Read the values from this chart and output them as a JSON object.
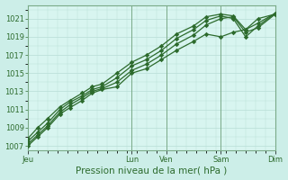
{
  "background_color": "#cceee8",
  "plot_bg": "#d8f5f0",
  "grid_color": "#b8ddd6",
  "line_color": "#2d6b2d",
  "marker_color": "#2d6b2d",
  "xlabel": "Pression niveau de la mer( hPa )",
  "ylim": [
    1006.5,
    1022.5
  ],
  "yticks": [
    1007,
    1009,
    1011,
    1013,
    1015,
    1017,
    1019,
    1021
  ],
  "day_labels": [
    "Jeu",
    "Lun",
    "Ven",
    "Sam",
    "Dim"
  ],
  "day_positions": [
    0,
    0.42,
    0.56,
    0.78,
    1.0
  ],
  "series": [
    {
      "x": [
        0.0,
        0.04,
        0.08,
        0.13,
        0.17,
        0.22,
        0.26,
        0.3,
        0.36,
        0.42,
        0.48,
        0.54,
        0.6,
        0.67,
        0.72,
        0.78,
        0.83,
        0.88,
        0.93,
        1.0
      ],
      "y": [
        1007.0,
        1008.0,
        1009.0,
        1010.5,
        1011.2,
        1012.0,
        1012.8,
        1013.2,
        1013.5,
        1015.0,
        1015.5,
        1016.5,
        1017.5,
        1018.5,
        1019.3,
        1019.0,
        1019.5,
        1019.8,
        1021.0,
        1021.5
      ]
    },
    {
      "x": [
        0.0,
        0.04,
        0.08,
        0.13,
        0.17,
        0.22,
        0.26,
        0.3,
        0.36,
        0.42,
        0.48,
        0.54,
        0.6,
        0.67,
        0.72,
        0.78,
        0.83,
        0.88,
        0.93,
        1.0
      ],
      "y": [
        1007.2,
        1008.2,
        1009.2,
        1010.7,
        1011.5,
        1012.3,
        1013.0,
        1013.3,
        1014.0,
        1015.3,
        1016.0,
        1017.0,
        1018.2,
        1019.2,
        1020.3,
        1021.0,
        1021.2,
        1019.5,
        1020.0,
        1021.5
      ]
    },
    {
      "x": [
        0.0,
        0.04,
        0.08,
        0.13,
        0.17,
        0.22,
        0.26,
        0.3,
        0.36,
        0.42,
        0.48,
        0.54,
        0.6,
        0.67,
        0.72,
        0.78,
        0.83,
        0.88,
        0.93,
        1.0
      ],
      "y": [
        1007.5,
        1008.5,
        1009.5,
        1011.0,
        1011.8,
        1012.5,
        1013.2,
        1013.5,
        1014.5,
        1015.8,
        1016.5,
        1017.5,
        1018.8,
        1019.8,
        1020.8,
        1021.3,
        1021.0,
        1019.0,
        1020.2,
        1021.6
      ]
    },
    {
      "x": [
        0.0,
        0.04,
        0.08,
        0.13,
        0.17,
        0.22,
        0.26,
        0.3,
        0.36,
        0.42,
        0.48,
        0.54,
        0.6,
        0.67,
        0.72,
        0.78,
        0.83,
        0.88,
        0.93,
        1.0
      ],
      "y": [
        1007.8,
        1009.0,
        1010.0,
        1011.3,
        1012.0,
        1012.8,
        1013.5,
        1013.8,
        1015.0,
        1016.2,
        1017.0,
        1018.0,
        1019.3,
        1020.2,
        1021.2,
        1021.5,
        1021.3,
        1019.8,
        1020.5,
        1021.6
      ]
    }
  ],
  "xlabel_fontsize": 7.5,
  "ytick_fontsize": 6,
  "xtick_fontsize": 6
}
